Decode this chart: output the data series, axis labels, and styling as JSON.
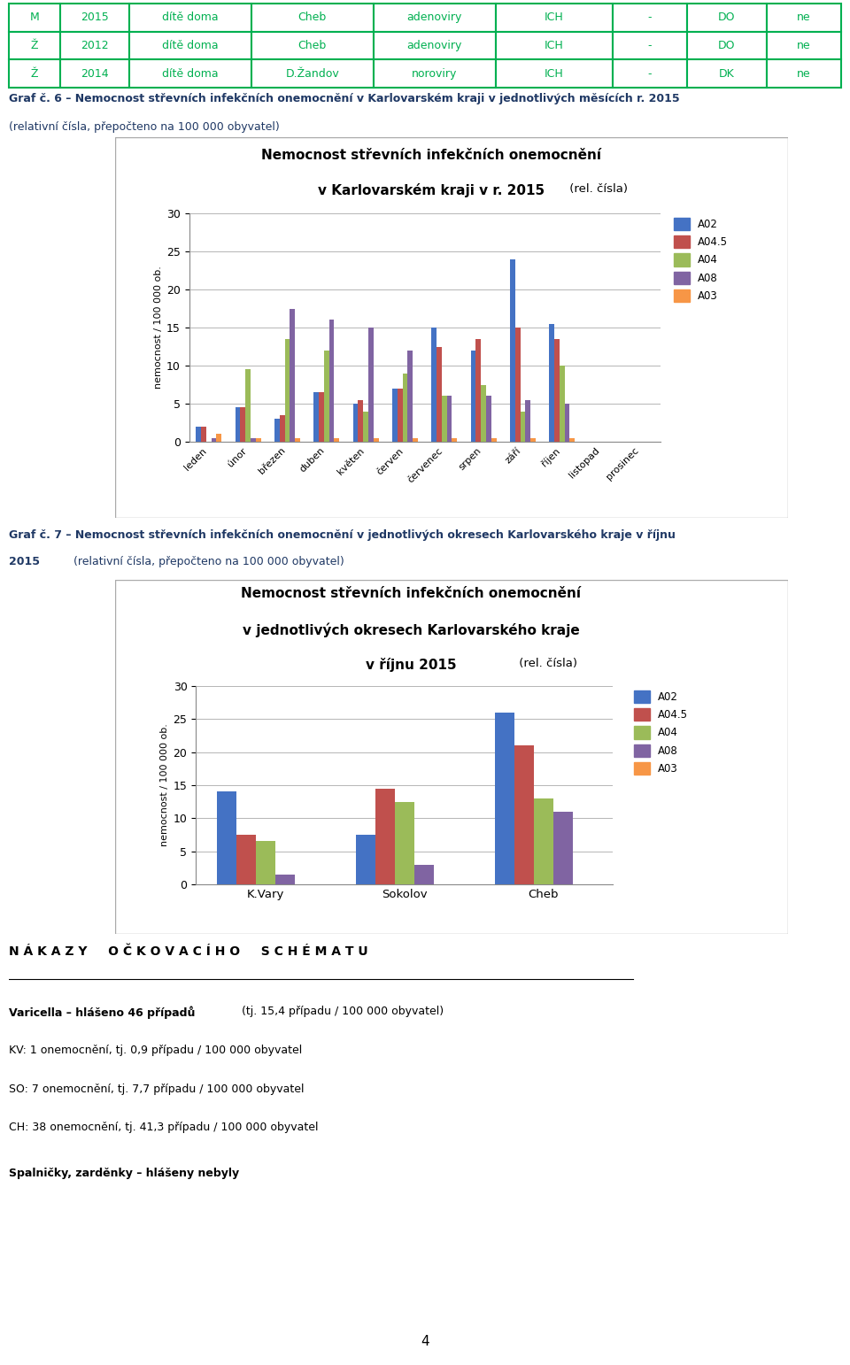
{
  "table_rows": [
    [
      "M",
      "2015",
      "dítě doma",
      "Cheb",
      "adenoviry",
      "ICH",
      "-",
      "DO",
      "ne"
    ],
    [
      "Ž",
      "2012",
      "dítě doma",
      "Cheb",
      "adenoviry",
      "ICH",
      "-",
      "DO",
      "ne"
    ],
    [
      "Ž",
      "2014",
      "dítě doma",
      "D.Žandov",
      "noroviry",
      "ICH",
      "-",
      "DK",
      "ne"
    ]
  ],
  "table_col_widths": [
    0.048,
    0.065,
    0.115,
    0.115,
    0.115,
    0.11,
    0.07,
    0.075,
    0.07
  ],
  "graf6_caption_bold": "Graf č. 6 – Nemocnost střevních infekčních onemocnění v Karlovarském kraji v jednotlivých měsících r. 2015",
  "graf6_caption_normal": "(relativní čísla, přepočteno na 100 000 obyvatel)",
  "graf6_title1": "Nemocnost střevních infekčních onemocnění",
  "graf6_title2": "v Karlovarském kraji v r. 2015",
  "graf6_title_suffix": " (rel. čísla)",
  "graf6_ylabel": "nemocnost / 100 000 ob.",
  "graf6_months": [
    "leden",
    "únor",
    "březen",
    "duben",
    "květen",
    "červen",
    "červenec",
    "srpen",
    "září",
    "říjen",
    "listopad",
    "prosinec"
  ],
  "graf6_series_keys": [
    "A02",
    "A04.5",
    "A04",
    "A08",
    "A03"
  ],
  "graf6_data": {
    "A02": [
      2.0,
      4.5,
      3.0,
      6.5,
      5.0,
      7.0,
      15.0,
      12.0,
      24.0,
      15.5,
      0.0,
      0.0
    ],
    "A04.5": [
      2.0,
      4.5,
      3.5,
      6.5,
      5.5,
      7.0,
      12.5,
      13.5,
      15.0,
      13.5,
      0.0,
      0.0
    ],
    "A04": [
      0.0,
      9.5,
      13.5,
      12.0,
      4.0,
      9.0,
      6.0,
      7.5,
      4.0,
      10.0,
      0.0,
      0.0
    ],
    "A08": [
      0.5,
      0.5,
      17.5,
      16.0,
      15.0,
      12.0,
      6.0,
      6.0,
      5.5,
      5.0,
      0.0,
      0.0
    ],
    "A03": [
      1.0,
      0.5,
      0.5,
      0.5,
      0.5,
      0.5,
      0.5,
      0.5,
      0.5,
      0.5,
      0.0,
      0.0
    ]
  },
  "series_colors": {
    "A02": "#4472C4",
    "A04.5": "#C0504D",
    "A04": "#9BBB59",
    "A08": "#8064A2",
    "A03": "#F79646"
  },
  "ylim": [
    0,
    30
  ],
  "yticks": [
    0,
    5,
    10,
    15,
    20,
    25,
    30
  ],
  "graf7_caption_bold": "Graf č. 7 – Nemocnost střevních infekčních onemocnění v jednotlivých okresech Karlovarského kraje v říjnu",
  "graf7_caption_bold2": "2015",
  "graf7_caption_normal": "(relativní čísla, přepočteno na 100 000 obyvatel)",
  "graf7_title1": "Nemocnost střevních infekčních onemocnění",
  "graf7_title2": "v jednotlivých okresech Karlovarského kraje",
  "graf7_title3": "v říjnu 2015",
  "graf7_title_suffix": " (rel. čísla)",
  "graf7_ylabel": "nemocnost / 100 000 ob.",
  "graf7_districts": [
    "K.Vary",
    "Sokolov",
    "Cheb"
  ],
  "graf7_series_keys": [
    "A02",
    "A04.5",
    "A04",
    "A08",
    "A03"
  ],
  "graf7_data": {
    "A02": [
      14.0,
      7.5,
      26.0
    ],
    "A04.5": [
      7.5,
      14.5,
      21.0
    ],
    "A04": [
      6.5,
      12.5,
      13.0
    ],
    "A08": [
      1.5,
      3.0,
      11.0
    ],
    "A03": [
      0.0,
      0.0,
      0.0
    ]
  },
  "nakazy_title": "N Á K A Z Y   O Č K O V A C Í H O   S C H É M A T U",
  "nakazy_varicella_bold": "Varicella – hlášeno 46 případů",
  "nakazy_varicella_rest": " (tj. 15,4 případu / 100 000 obyvatel)",
  "nakazy_lines": [
    "KV: 1 onemocnění, tj. 0,9 případu / 100 000 obyvatel",
    "SO: 7 onemocnění, tj. 7,7 případu / 100 000 obyvatel",
    "CH: 38 onemocnění, tj. 41,3 případu / 100 000 obyvatel"
  ],
  "spalnicka_bold": "Spalničky, zarděnky – hlášeny nebyly",
  "page_number": "4",
  "border_color": "#00B050",
  "caption_color": "#1F3864",
  "text_green": "#00B050"
}
